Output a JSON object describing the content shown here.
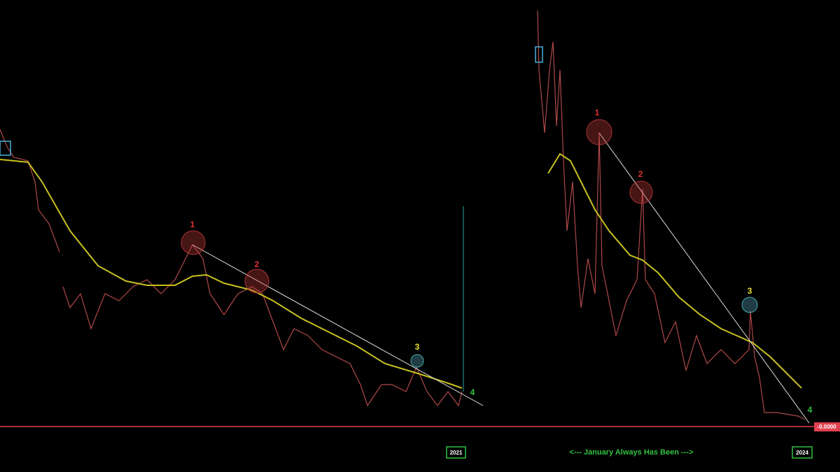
{
  "panels": [
    {
      "markers": [
        "1",
        "2",
        "3",
        "4"
      ]
    },
    {
      "markers": [
        "1",
        "2",
        "3",
        "4"
      ]
    }
  ],
  "price_label": "-0.0000",
  "time_labels": [
    "2021",
    "2024"
  ],
  "caption": "<--- January Always Has Been --->"
}
